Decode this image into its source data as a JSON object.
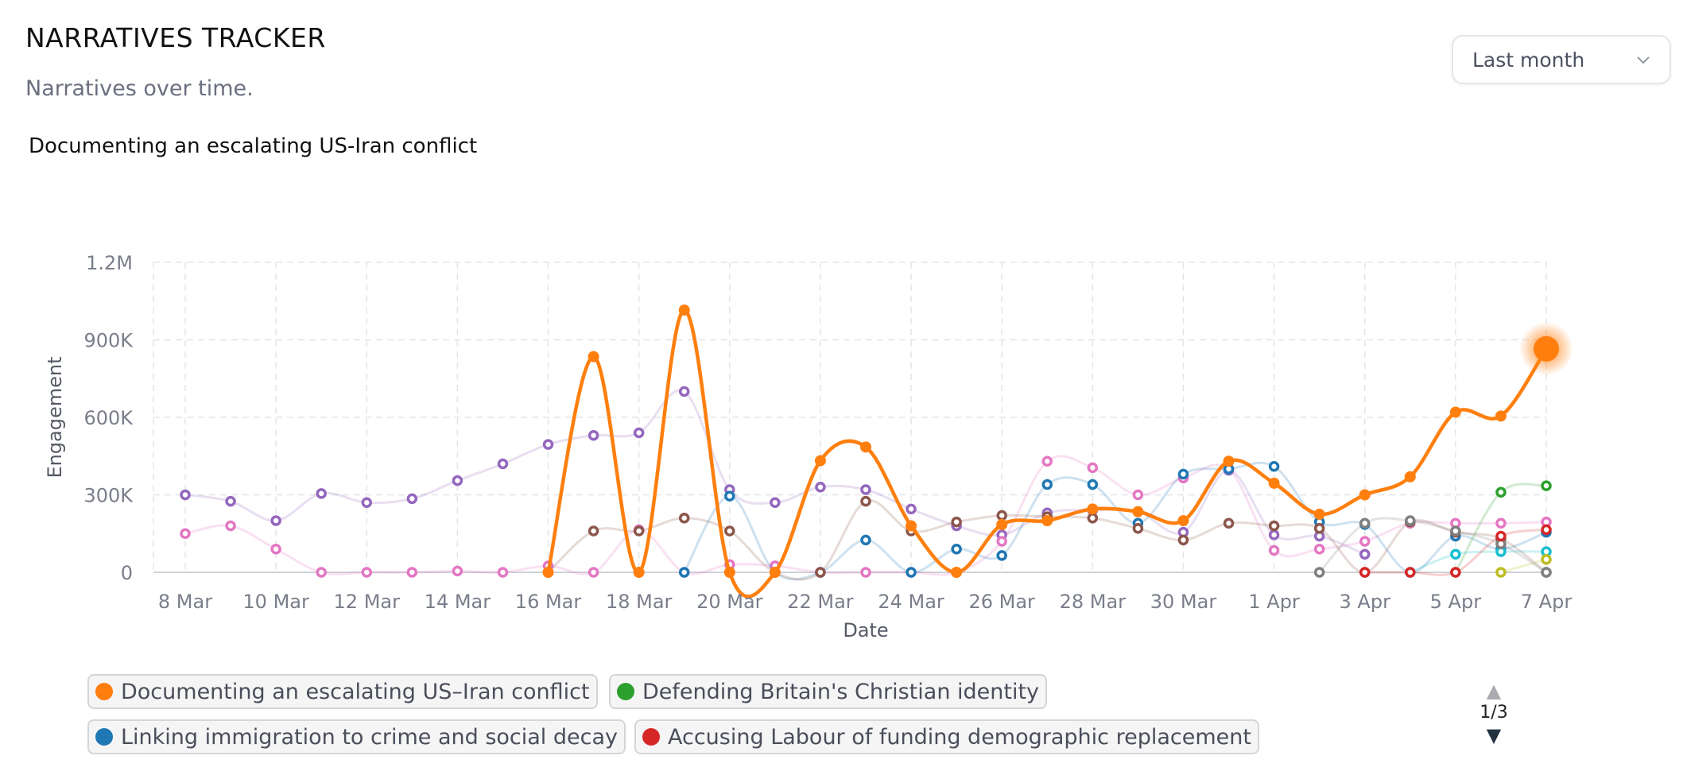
{
  "header": {
    "title": "NARRATIVES TRACKER",
    "subtitle": "Narratives over time."
  },
  "period_select": {
    "value": "Last month",
    "icon": "chevron-down-icon"
  },
  "legend": {
    "items": [
      {
        "label": "Documenting an escalating US–Iran conflict",
        "color": "#ff7f0e"
      },
      {
        "label": "Defending Britain's Christian identity",
        "color": "#2ca02c"
      },
      {
        "label": "Linking immigration to crime and social decay",
        "color": "#1f77b4"
      },
      {
        "label": "Accusing Labour of funding demographic replacement",
        "color": "#d62728"
      }
    ],
    "page": "1/3"
  },
  "chart_data": {
    "type": "line",
    "title": "Documenting an escalating US-Iran conflict",
    "xlabel": "Date",
    "ylabel": "Engagement",
    "ylim": [
      0,
      1200000
    ],
    "yticks": [
      "0",
      "300K",
      "600K",
      "900K",
      "1.2M"
    ],
    "xticks": [
      "8 Mar",
      "10 Mar",
      "12 Mar",
      "14 Mar",
      "16 Mar",
      "18 Mar",
      "20 Mar",
      "22 Mar",
      "24 Mar",
      "26 Mar",
      "28 Mar",
      "30 Mar",
      "1 Apr",
      "3 Apr",
      "5 Apr",
      "7 Apr"
    ],
    "x_start": "2025-03-08",
    "x_end": "2025-04-07",
    "grid": true,
    "highlighted_series": "Documenting an escalating US–Iran conflict",
    "series": [
      {
        "name": "Documenting an escalating US–Iran conflict",
        "color": "#ff7f0e",
        "highlight": true,
        "x": [
          "2025-03-16",
          "2025-03-17",
          "2025-03-18",
          "2025-03-19",
          "2025-03-20",
          "2025-03-21",
          "2025-03-22",
          "2025-03-23",
          "2025-03-24",
          "2025-03-25",
          "2025-03-26",
          "2025-03-27",
          "2025-03-28",
          "2025-03-29",
          "2025-03-30",
          "2025-03-31",
          "2025-04-01",
          "2025-04-02",
          "2025-04-03",
          "2025-04-04",
          "2025-04-05",
          "2025-04-06",
          "2025-04-07"
        ],
        "values": [
          0,
          835000,
          0,
          1015000,
          0,
          0,
          432000,
          485000,
          180000,
          0,
          185000,
          200000,
          245000,
          235000,
          200000,
          430000,
          345000,
          225000,
          300000,
          370000,
          620000,
          605000,
          865000
        ]
      },
      {
        "color": "#9467bd",
        "x": [
          "2025-03-08",
          "2025-03-09",
          "2025-03-10",
          "2025-03-11",
          "2025-03-12",
          "2025-03-13",
          "2025-03-14",
          "2025-03-15",
          "2025-03-16",
          "2025-03-17",
          "2025-03-18",
          "2025-03-19",
          "2025-03-20",
          "2025-03-21",
          "2025-03-22",
          "2025-03-23",
          "2025-03-24",
          "2025-03-25",
          "2025-03-26",
          "2025-03-27",
          "2025-03-28",
          "2025-03-29",
          "2025-03-30",
          "2025-03-31",
          "2025-04-01",
          "2025-04-02",
          "2025-04-03"
        ],
        "values": [
          300000,
          275000,
          200000,
          305000,
          270000,
          285000,
          355000,
          420000,
          495000,
          530000,
          540000,
          700000,
          320000,
          270000,
          330000,
          320000,
          245000,
          180000,
          145000,
          230000,
          240000,
          235000,
          155000,
          395000,
          145000,
          140000,
          70000
        ]
      },
      {
        "color": "#e377c2",
        "x": [
          "2025-03-08",
          "2025-03-09",
          "2025-03-10",
          "2025-03-11",
          "2025-03-12",
          "2025-03-13",
          "2025-03-14",
          "2025-03-15",
          "2025-03-16",
          "2025-03-17",
          "2025-03-18",
          "2025-03-19",
          "2025-03-20",
          "2025-03-21",
          "2025-03-22",
          "2025-03-23",
          "2025-03-24",
          "2025-03-25",
          "2025-03-26",
          "2025-03-27",
          "2025-03-28",
          "2025-03-29",
          "2025-03-30",
          "2025-03-31",
          "2025-04-01",
          "2025-04-02",
          "2025-04-03",
          "2025-04-04",
          "2025-04-05",
          "2025-04-06",
          "2025-04-07"
        ],
        "values": [
          150000,
          180000,
          90000,
          0,
          0,
          0,
          5000,
          0,
          25000,
          0,
          165000,
          0,
          30000,
          25000,
          0,
          0,
          0,
          0,
          120000,
          430000,
          405000,
          300000,
          365000,
          400000,
          85000,
          90000,
          120000,
          190000,
          190000,
          190000,
          195000
        ]
      },
      {
        "color": "#1f77b4",
        "x": [
          "2025-03-19",
          "2025-03-20",
          "2025-03-21",
          "2025-03-22",
          "2025-03-23",
          "2025-03-24",
          "2025-03-25",
          "2025-03-26",
          "2025-03-27",
          "2025-03-28",
          "2025-03-29",
          "2025-03-30",
          "2025-03-31",
          "2025-04-01",
          "2025-04-02",
          "2025-04-03",
          "2025-04-04",
          "2025-04-05",
          "2025-04-06",
          "2025-04-07"
        ],
        "values": [
          0,
          295000,
          0,
          0,
          125000,
          0,
          90000,
          65000,
          340000,
          340000,
          190000,
          380000,
          400000,
          410000,
          195000,
          185000,
          0,
          140000,
          90000,
          155000
        ]
      },
      {
        "color": "#8c564b",
        "x": [
          "2025-03-16",
          "2025-03-17",
          "2025-03-18",
          "2025-03-19",
          "2025-03-20",
          "2025-03-21",
          "2025-03-22",
          "2025-03-23",
          "2025-03-24",
          "2025-03-25",
          "2025-03-26",
          "2025-03-27",
          "2025-03-28",
          "2025-03-29",
          "2025-03-30",
          "2025-03-31",
          "2025-04-01",
          "2025-04-02",
          "2025-04-03",
          "2025-04-04",
          "2025-04-05",
          "2025-04-06",
          "2025-04-07"
        ],
        "values": [
          0,
          160000,
          160000,
          210000,
          160000,
          0,
          0,
          275000,
          160000,
          195000,
          220000,
          215000,
          210000,
          170000,
          125000,
          190000,
          180000,
          170000,
          0,
          195000,
          155000,
          130000,
          0
        ]
      },
      {
        "color": "#2ca02c",
        "x": [
          "2025-04-05",
          "2025-04-06",
          "2025-04-07"
        ],
        "values": [
          0,
          310000,
          335000
        ]
      },
      {
        "color": "#17becf",
        "x": [
          "2025-04-04",
          "2025-04-05",
          "2025-04-06",
          "2025-04-07"
        ],
        "values": [
          0,
          70000,
          80000,
          80000
        ]
      },
      {
        "color": "#bcbd22",
        "x": [
          "2025-04-06",
          "2025-04-07"
        ],
        "values": [
          0,
          50000
        ]
      },
      {
        "color": "#7f7f7f",
        "x": [
          "2025-04-02",
          "2025-04-03",
          "2025-04-04",
          "2025-04-05",
          "2025-04-06",
          "2025-04-07"
        ],
        "values": [
          0,
          190000,
          200000,
          160000,
          110000,
          0
        ]
      },
      {
        "color": "#d62728",
        "x": [
          "2025-04-03",
          "2025-04-04",
          "2025-04-05",
          "2025-04-06",
          "2025-04-07"
        ],
        "values": [
          0,
          0,
          0,
          140000,
          165000
        ]
      }
    ]
  }
}
